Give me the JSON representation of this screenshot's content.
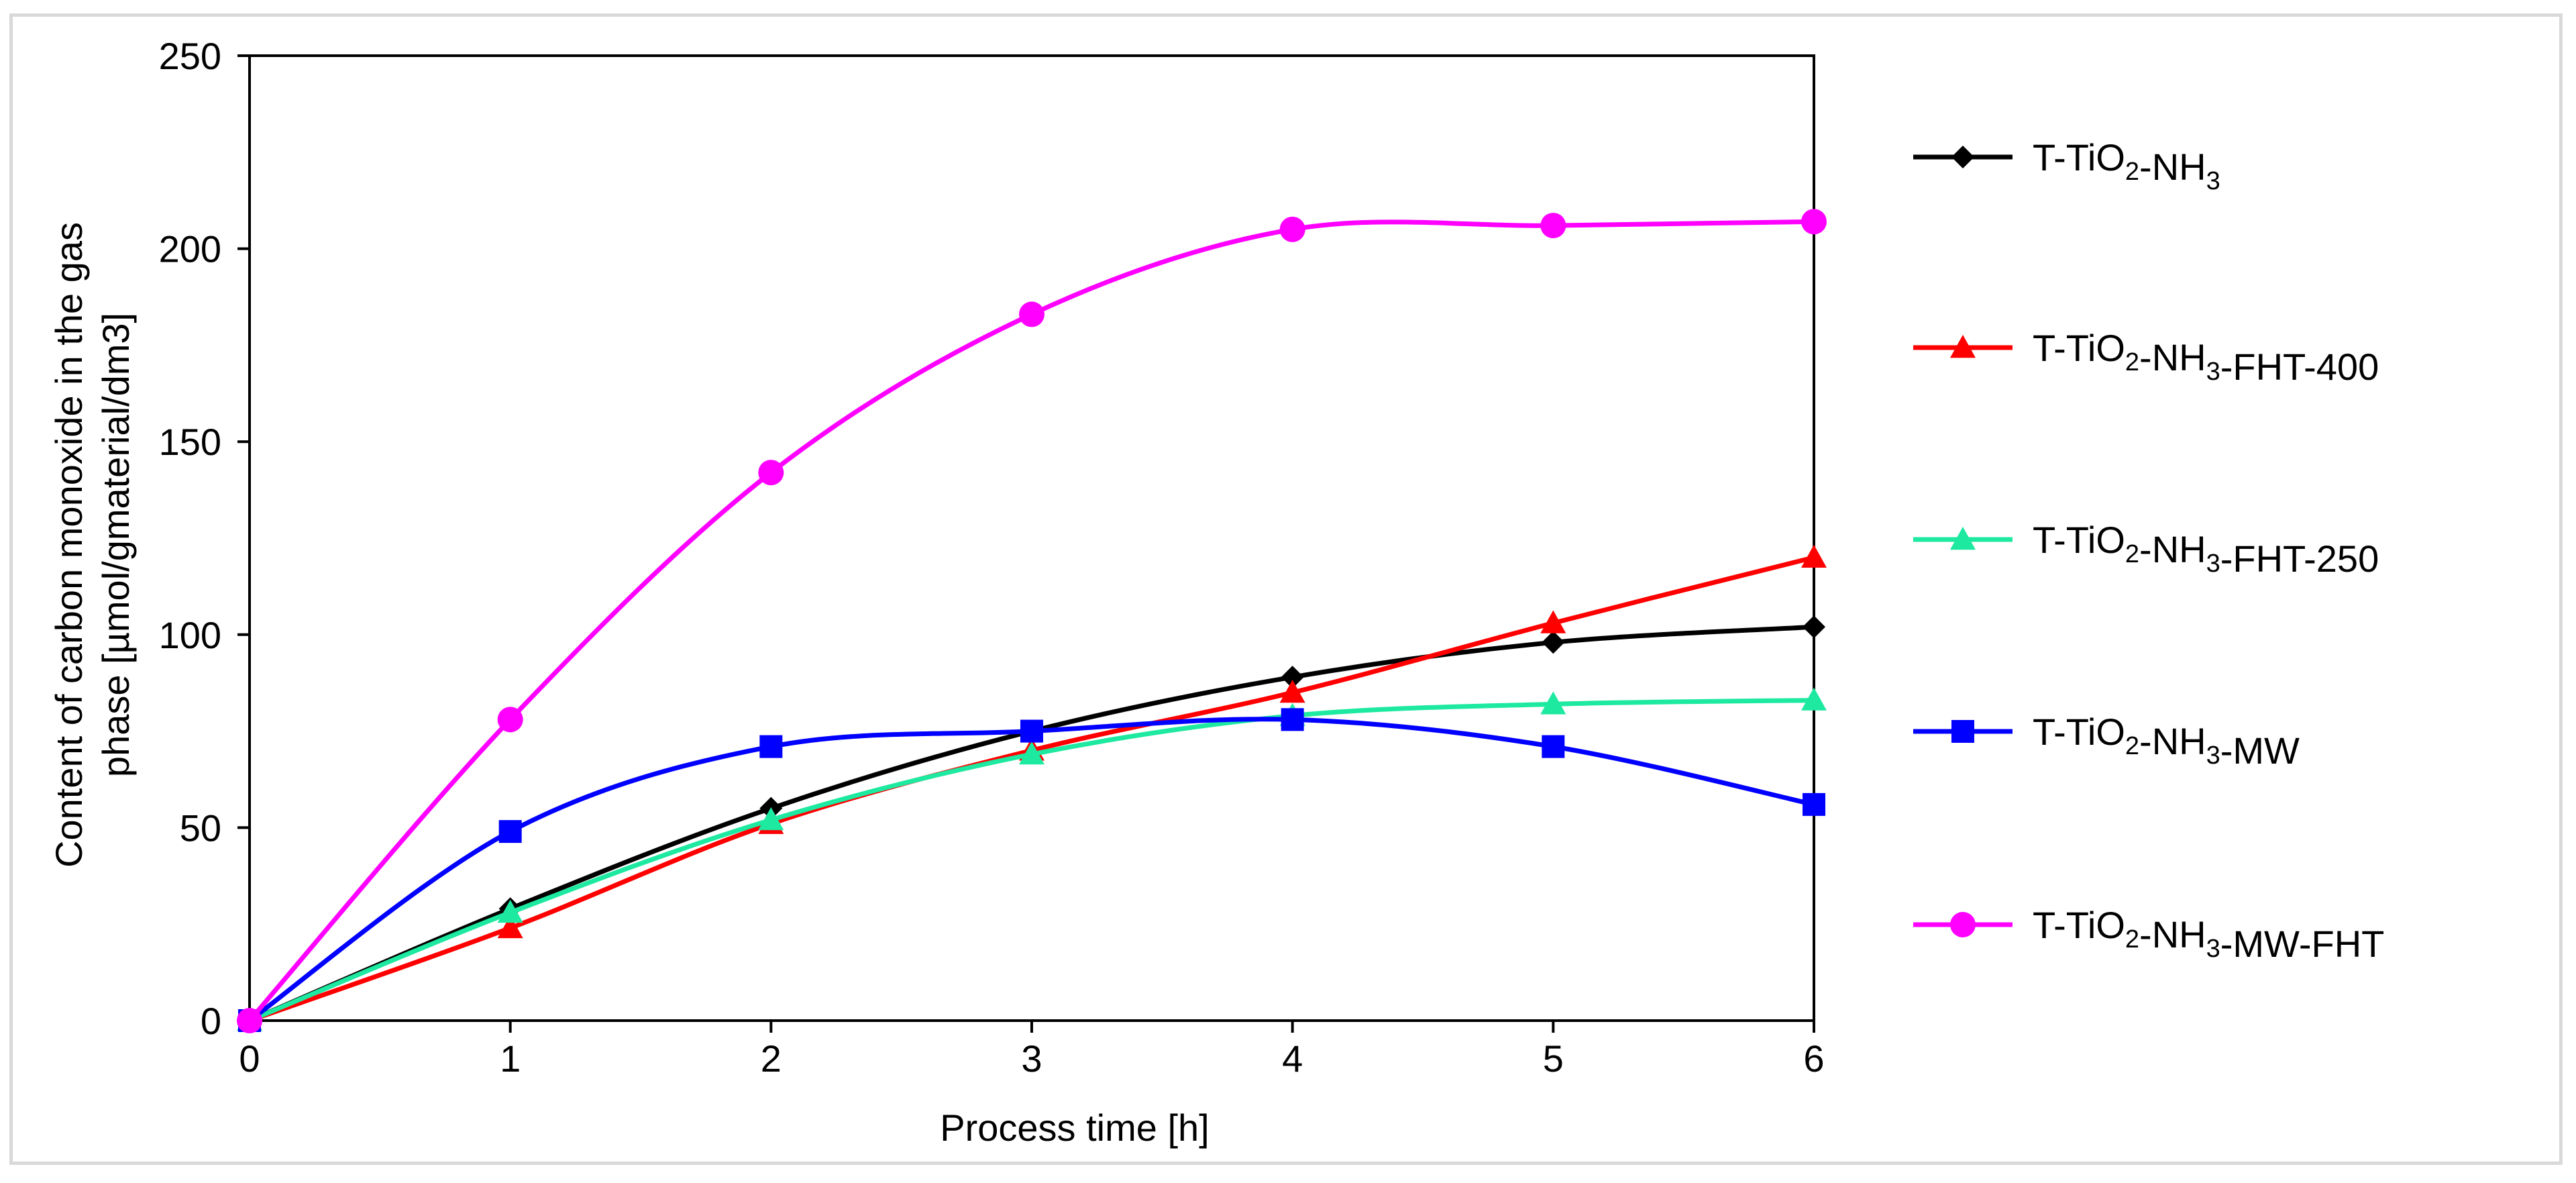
{
  "chart_data": {
    "type": "line",
    "title": "",
    "xlabel": "Process time [h]",
    "ylabel_line1": "Content of carbon monoxide in the gas",
    "ylabel_line2": "phase [µmol/gmaterial/dm3]",
    "xlim": [
      0,
      6
    ],
    "ylim": [
      0,
      250
    ],
    "x_ticks": [
      "0",
      "1",
      "2",
      "3",
      "4",
      "5",
      "6"
    ],
    "y_ticks": [
      "0",
      "50",
      "100",
      "150",
      "200",
      "250"
    ],
    "grid": false,
    "legend_position": "right",
    "x": [
      0,
      1,
      2,
      3,
      4,
      5,
      6
    ],
    "series": [
      {
        "name": "T-TiO2-NH3",
        "label_parts": [
          "T-TiO",
          "2",
          "-NH",
          "3",
          ""
        ],
        "color": "#000000",
        "marker": "diamond",
        "values": [
          0,
          29,
          55,
          75,
          89,
          98,
          102
        ]
      },
      {
        "name": "T-TiO2-NH3-FHT-400",
        "label_parts": [
          "T-TiO",
          "2",
          "-NH",
          "3",
          "-FHT-400"
        ],
        "color": "#ff0000",
        "marker": "triangle",
        "values": [
          0,
          24,
          51,
          70,
          85,
          103,
          120
        ]
      },
      {
        "name": "T-TiO2-NH3-FHT-250",
        "label_parts": [
          "T-TiO",
          "2",
          "-NH",
          "3",
          "-FHT-250"
        ],
        "color": "#1de9a0",
        "marker": "triangle",
        "values": [
          0,
          28,
          52,
          69,
          79,
          82,
          83
        ]
      },
      {
        "name": "T-TiO2-NH3-MW",
        "label_parts": [
          "T-TiO",
          "2",
          "-NH",
          "3",
          "-MW"
        ],
        "color": "#0000ff",
        "marker": "square",
        "values": [
          0,
          49,
          71,
          75,
          78,
          71,
          56
        ]
      },
      {
        "name": "T-TiO2-NH3-MW-FHT",
        "label_parts": [
          "T-TiO",
          "2",
          "-NH",
          "3",
          "-MW-FHT"
        ],
        "color": "#ff00ff",
        "marker": "circle",
        "values": [
          0,
          78,
          142,
          183,
          205,
          206,
          207
        ]
      }
    ]
  }
}
